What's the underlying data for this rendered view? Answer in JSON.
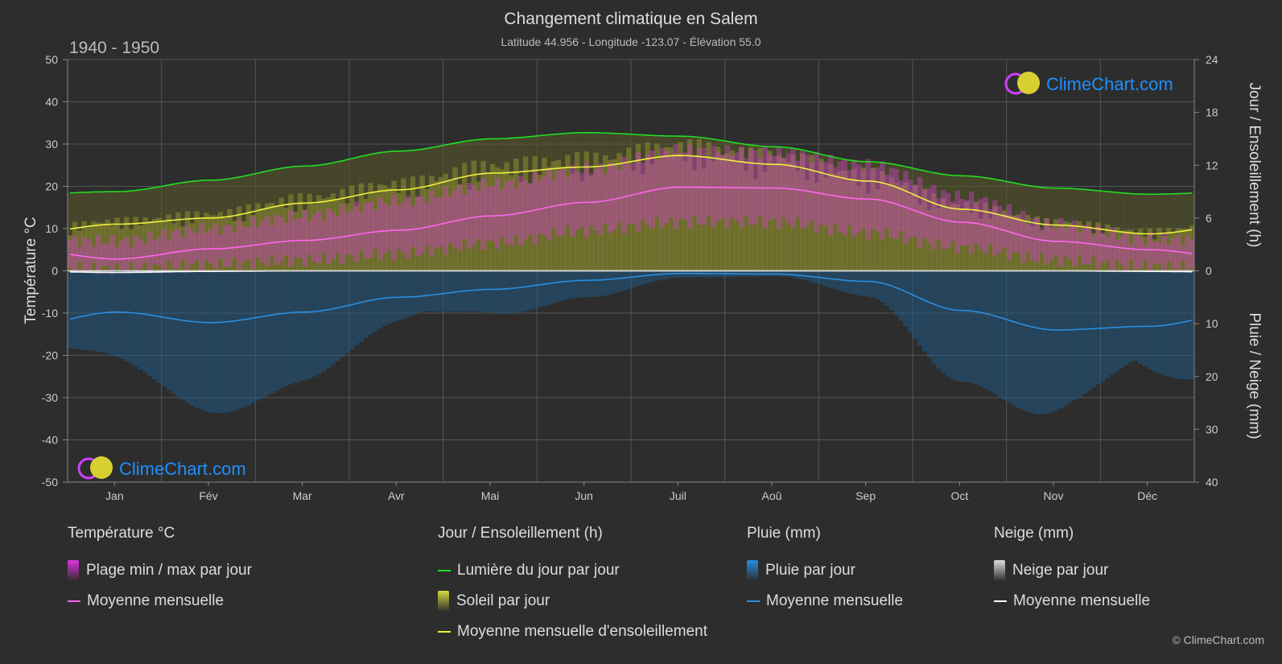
{
  "header": {
    "title": "Changement climatique en Salem",
    "subtitle": "Latitude 44.956 - Longitude -123.07 - Élévation 55.0",
    "period": "1940 - 1950"
  },
  "logo": {
    "text": "ClimeChart.com"
  },
  "copyright": "© ClimeChart.com",
  "colors": {
    "background": "#2d2d2d",
    "daylight": "#22dd22",
    "sunshine_mean": "#f0f040",
    "temp_mean": "#ff66ee",
    "temp_range": "#e040e0",
    "rain": "#2a8ee0",
    "snow": "#ffffff",
    "logo_text": "#1e90ff"
  },
  "legend": {
    "groups": [
      {
        "title": "Température °C",
        "items": [
          {
            "label": "Plage min / max par jour",
            "swatch": "rect",
            "color": "#e030e0"
          },
          {
            "label": "Moyenne mensuelle",
            "swatch": "line",
            "color": "#ff66ee"
          }
        ]
      },
      {
        "title": "Jour / Ensoleillement (h)",
        "items": [
          {
            "label": "Lumière du jour par jour",
            "swatch": "line",
            "color": "#22dd22"
          },
          {
            "label": "Soleil par jour",
            "swatch": "rect",
            "color": "#d8d840"
          },
          {
            "label": "Moyenne mensuelle d'ensoleillement",
            "swatch": "line",
            "color": "#f0f040"
          }
        ]
      },
      {
        "title": "Pluie (mm)",
        "items": [
          {
            "label": "Pluie par jour",
            "swatch": "rect",
            "color": "#2a8ee0"
          },
          {
            "label": "Moyenne mensuelle",
            "swatch": "line",
            "color": "#2a8ee0"
          }
        ]
      },
      {
        "title": "Neige (mm)",
        "items": [
          {
            "label": "Neige par jour",
            "swatch": "rect",
            "color": "#dddddd"
          },
          {
            "label": "Moyenne mensuelle",
            "swatch": "line",
            "color": "#ffffff"
          }
        ]
      }
    ]
  },
  "chart_data": {
    "type": "line",
    "categories": [
      "Jan",
      "Fév",
      "Mar",
      "Avr",
      "Mai",
      "Jun",
      "Juil",
      "Aoû",
      "Sep",
      "Oct",
      "Nov",
      "Déc"
    ],
    "axes": {
      "left": {
        "label": "Température °C",
        "range": [
          -50,
          50
        ],
        "ticks": [
          50,
          40,
          30,
          20,
          10,
          0,
          -10,
          -20,
          -30,
          -40,
          -50
        ]
      },
      "right_top": {
        "label": "Jour / Ensoleillement (h)",
        "range": [
          0,
          24
        ],
        "ticks": [
          24,
          18,
          12,
          6,
          0
        ]
      },
      "right_bottom": {
        "label": "Pluie / Neige (mm)",
        "range": [
          0,
          40
        ],
        "ticks": [
          0,
          10,
          20,
          30,
          40
        ]
      }
    },
    "grid": true,
    "series": [
      {
        "name": "Lumière du jour par jour",
        "axis": "right_top",
        "values": [
          9.0,
          10.3,
          11.9,
          13.6,
          15.0,
          15.7,
          15.3,
          14.1,
          12.4,
          10.8,
          9.4,
          8.7
        ]
      },
      {
        "name": "Moyenne mensuelle d'ensoleillement",
        "axis": "right_top",
        "values": [
          5.3,
          6.0,
          7.7,
          9.2,
          11.1,
          11.8,
          13.1,
          12.1,
          10.2,
          7.0,
          5.2,
          4.2
        ]
      },
      {
        "name": "Moyenne mensuelle",
        "group": "Température °C",
        "axis": "left",
        "values": [
          2.8,
          5.2,
          7.2,
          9.6,
          13.0,
          16.2,
          19.8,
          19.6,
          17.0,
          11.5,
          7.0,
          5.0
        ]
      },
      {
        "name": "Moyenne mensuelle",
        "group": "Pluie (mm)",
        "axis": "right_bottom",
        "values": [
          7.8,
          9.8,
          7.8,
          5.0,
          3.5,
          1.8,
          0.5,
          0.6,
          2.0,
          7.5,
          11.2,
          10.5
        ]
      },
      {
        "name": "Moyenne mensuelle",
        "group": "Neige (mm)",
        "axis": "right_bottom",
        "values": [
          0.3,
          0.1,
          0.0,
          0.0,
          0.0,
          0.0,
          0.0,
          0.0,
          0.0,
          0.0,
          0.0,
          0.1
        ]
      },
      {
        "name": "Plage min / max par jour",
        "axis": "left",
        "min": [
          0.5,
          1.5,
          2.5,
          4.0,
          6.5,
          9.5,
          11.5,
          11.5,
          9.0,
          5.5,
          2.5,
          1.0
        ],
        "max": [
          7.0,
          10.0,
          13.0,
          16.5,
          20.5,
          24.0,
          28.5,
          28.0,
          25.0,
          17.5,
          11.0,
          7.5
        ]
      }
    ]
  }
}
